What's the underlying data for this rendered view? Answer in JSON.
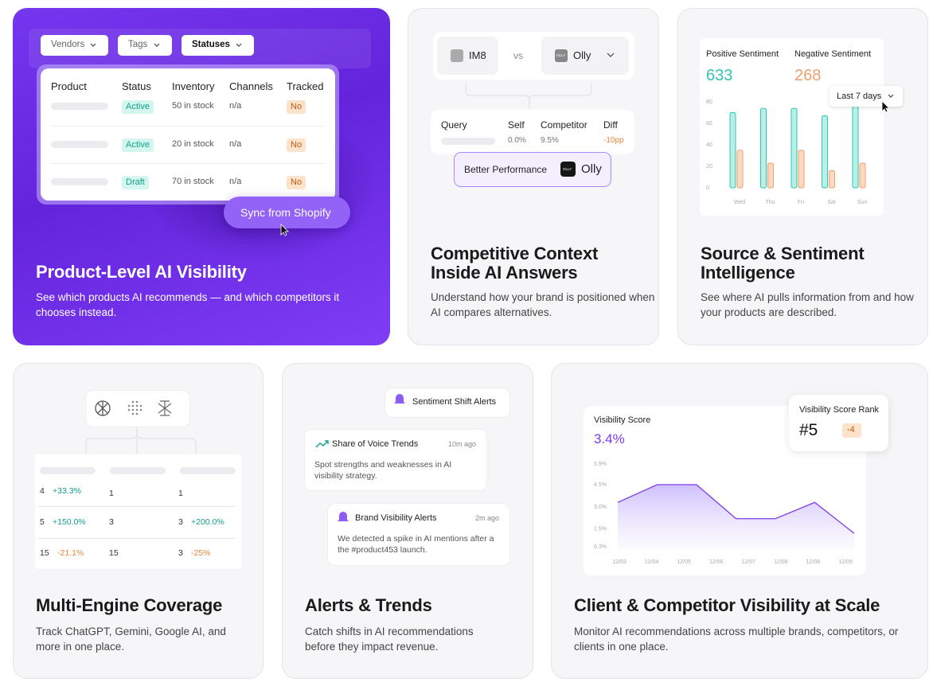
{
  "product_card": {
    "filters": [
      "Vendors",
      "Tags",
      "Statuses"
    ],
    "table": {
      "header": [
        "Product",
        "Status",
        "Inventory",
        "Channels",
        "Tracked"
      ],
      "rows": [
        [
          "Active",
          "50 in stock",
          "n/a",
          "No"
        ],
        [
          "Active",
          "20 in stock",
          "n/a",
          "No"
        ],
        [
          "Draft",
          "70 in stock",
          "n/a",
          "No"
        ]
      ]
    },
    "button": "Sync from Shopify",
    "title": "Product-Level AI Visibility",
    "description": "See which products AI recommends — and which competitors it chooses instead."
  },
  "competitive_card": {
    "brand": "IM8",
    "vs": "vs",
    "competitor_logo": "OLLY",
    "competitor": "Olly",
    "table": {
      "header": [
        "Query",
        "Self",
        "Competitor",
        "Diff"
      ],
      "row": [
        "0.0%",
        "9.5%",
        "-10pp"
      ]
    },
    "badge": {
      "label": "Better Performance",
      "logo": "OLLY",
      "brand": "Olly"
    },
    "title": "Competitive Context Inside AI Answers",
    "description": "Understand how your brand is positioned when AI compares alternatives."
  },
  "sentiment_card": {
    "positive_value": "633",
    "negative_value": "268",
    "range_selector": "Last 7 days",
    "title": "Source & Sentiment Intelligence",
    "description": "See where AI pulls information from and how your products are described."
  },
  "engine_card": {
    "rows": [
      [
        "4",
        "+33.3%",
        "1",
        "1",
        ""
      ],
      [
        "5",
        "+150.0%",
        "3",
        "3",
        "+200.0%"
      ],
      [
        "15",
        "-21.1%",
        "15",
        "3",
        "-25%"
      ]
    ],
    "title": "Multi-Engine Coverage",
    "description": "Track ChatGPT, Gemini, Google AI, and more in one place."
  },
  "alerts_card": {
    "pill": "Sentiment Shift Alerts",
    "alerts": [
      {
        "title": "Share of Voice Trends",
        "time": "10m ago",
        "text": "Spot strengths and weaknesses in AI visibility strategy."
      },
      {
        "title": "Brand Visibility Alerts",
        "time": "2m ago",
        "text": "We detected a spike in AI mentions after a the #product453 launch."
      }
    ],
    "title": "Alerts & Trends",
    "description": "Catch shifts in AI recommendations before they impact revenue."
  },
  "visibility_card": {
    "score_value": "3.4%",
    "rank_label": "Visibility Score Rank",
    "rank": "#5",
    "rank_change": "-4",
    "title": "Client & Competitor Visibility at Scale",
    "description": "Monitor AI recommendations across multiple brands, competitors, or clients in one place."
  },
  "chart_data": [
    {
      "type": "bar",
      "categories": [
        "Wed",
        "Thu",
        "Fri",
        "Sat",
        "Sun"
      ],
      "series": [
        {
          "name": "Positive Sentiment",
          "color": "#2ec4b6",
          "values": [
            70,
            74,
            74,
            67,
            80
          ]
        },
        {
          "name": "Negative Sentiment",
          "color": "#f0a070",
          "values": [
            35,
            23,
            35,
            16,
            23
          ]
        }
      ],
      "ylim": [
        0,
        80
      ],
      "yticks": [
        0,
        20,
        40,
        60,
        80
      ]
    },
    {
      "type": "line",
      "title": "Visibility Score",
      "color": "#7c3aed",
      "x_tick_labels": [
        "12/03",
        "12/04",
        "12/05",
        "12/06",
        "12/07",
        "12/08",
        "12/08",
        "12/09"
      ],
      "values": [
        3.3,
        4.5,
        4.5,
        2.2,
        2.2,
        3.3,
        1.2
      ],
      "ylim": [
        0.3,
        5.9
      ],
      "yticks": [
        {
          "value": 0.3,
          "label": "0.3%"
        },
        {
          "value": 1.5,
          "label": "1.5%"
        },
        {
          "value": 3.0,
          "label": "3.0%"
        },
        {
          "value": 4.5,
          "label": "4.5%"
        },
        {
          "value": 5.9,
          "label": "5.9%"
        }
      ]
    }
  ]
}
